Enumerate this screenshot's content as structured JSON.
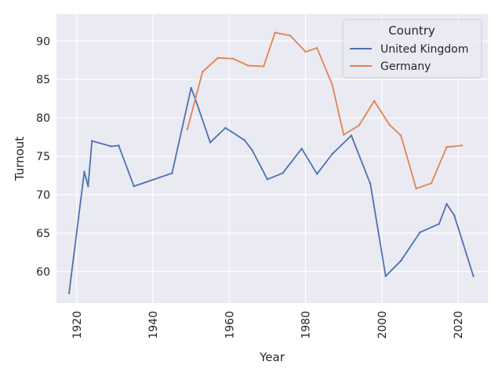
{
  "chart_data": {
    "type": "line",
    "xlabel": "Year",
    "ylabel": "Turnout",
    "xlim": [
      1914.7,
      2027.8
    ],
    "ylim": [
      55.9,
      93.5
    ],
    "x_ticks": [
      1920,
      1940,
      1960,
      1980,
      2000,
      2020
    ],
    "y_ticks": [
      60,
      65,
      70,
      75,
      80,
      85,
      90
    ],
    "grid": true,
    "legend": {
      "title": "Country",
      "placement": "top-right"
    },
    "series": [
      {
        "name": "United Kingdom",
        "color": "#4c72b0",
        "points": [
          [
            1918,
            57.2
          ],
          [
            1922,
            73.0
          ],
          [
            1923,
            71.1
          ],
          [
            1924,
            77.0
          ],
          [
            1929,
            76.3
          ],
          [
            1931,
            76.4
          ],
          [
            1935,
            71.1
          ],
          [
            1945,
            72.8
          ],
          [
            1950,
            83.9
          ],
          [
            1951,
            82.6
          ],
          [
            1955,
            76.8
          ],
          [
            1959,
            78.7
          ],
          [
            1964,
            77.1
          ],
          [
            1966,
            75.8
          ],
          [
            1970,
            72.0
          ],
          [
            1974,
            72.8
          ],
          [
            1979,
            76.0
          ],
          [
            1983,
            72.7
          ],
          [
            1987,
            75.3
          ],
          [
            1992,
            77.7
          ],
          [
            1997,
            71.4
          ],
          [
            2001,
            59.4
          ],
          [
            2005,
            61.4
          ],
          [
            2010,
            65.1
          ],
          [
            2015,
            66.2
          ],
          [
            2017,
            68.8
          ],
          [
            2019,
            67.3
          ],
          [
            2024,
            59.4
          ]
        ]
      },
      {
        "name": "Germany",
        "color": "#dd8452",
        "points": [
          [
            1949,
            78.5
          ],
          [
            1953,
            86.0
          ],
          [
            1957,
            87.8
          ],
          [
            1961,
            87.7
          ],
          [
            1965,
            86.8
          ],
          [
            1969,
            86.7
          ],
          [
            1972,
            91.1
          ],
          [
            1976,
            90.7
          ],
          [
            1980,
            88.6
          ],
          [
            1983,
            89.1
          ],
          [
            1987,
            84.3
          ],
          [
            1990,
            77.8
          ],
          [
            1994,
            79.0
          ],
          [
            1998,
            82.2
          ],
          [
            2002,
            79.1
          ],
          [
            2005,
            77.7
          ],
          [
            2009,
            70.8
          ],
          [
            2013,
            71.5
          ],
          [
            2017,
            76.2
          ],
          [
            2021,
            76.4
          ]
        ]
      }
    ]
  }
}
